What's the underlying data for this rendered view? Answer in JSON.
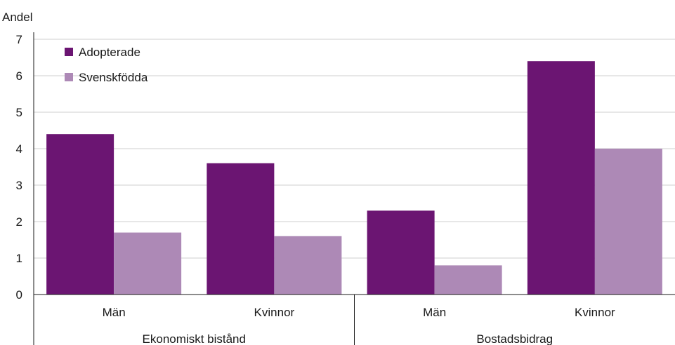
{
  "chart_data": {
    "type": "bar",
    "title": "",
    "ylabel": "Andel",
    "xlabel": "",
    "ylim": [
      0,
      7
    ],
    "yticks": [
      0,
      1,
      2,
      3,
      4,
      5,
      6,
      7
    ],
    "grid": true,
    "legend_position": "top-left",
    "groups": [
      {
        "label": "Ekonomiskt bistånd",
        "categories": [
          "Män",
          "Kvinnor"
        ]
      },
      {
        "label": "Bostadsbidrag",
        "categories": [
          "Män",
          "Kvinnor"
        ]
      }
    ],
    "categories": [
      "Män",
      "Kvinnor",
      "Män",
      "Kvinnor"
    ],
    "series": [
      {
        "name": "Adopterade",
        "color": "#6b1572",
        "values": [
          4.4,
          3.6,
          2.3,
          6.4
        ]
      },
      {
        "name": "Svenskfödda",
        "color": "#ad89b6",
        "values": [
          1.7,
          1.6,
          0.8,
          4.0
        ]
      }
    ]
  }
}
